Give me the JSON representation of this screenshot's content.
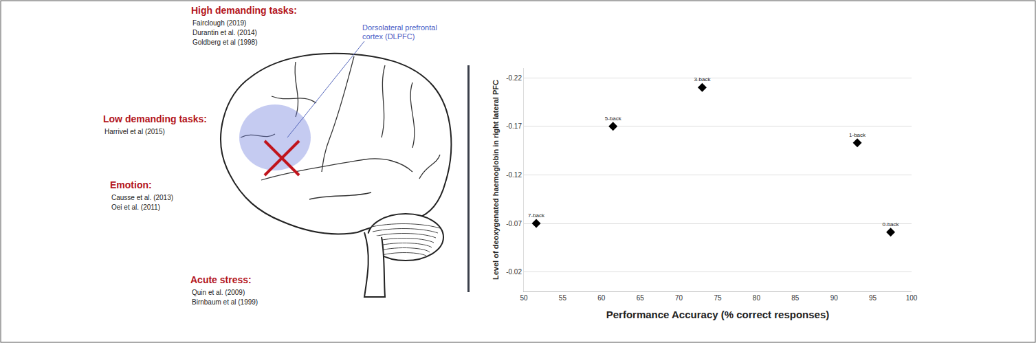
{
  "chart_data": {
    "type": "scatter",
    "x": [
      51.6,
      61.5,
      73.0,
      93.0,
      97.3
    ],
    "values": [
      -0.07,
      -0.17,
      -0.21,
      -0.153,
      -0.061
    ],
    "labels": [
      "7-back",
      "5-back",
      "3-back",
      "1-back",
      "0-back"
    ],
    "xlabel": "Performance Accuracy (% correct responses)",
    "ylabel": "Level of deoxygenated haemoglobin in right lateral PFC",
    "xlim": [
      50,
      100
    ],
    "xticks": [
      50,
      55,
      60,
      65,
      70,
      75,
      80,
      85,
      90,
      95,
      100
    ],
    "ylim": [
      0,
      -0.23
    ],
    "yticks": [
      -0.22,
      -0.17,
      -0.12,
      -0.07,
      -0.02
    ],
    "grid": true,
    "color": "#000000",
    "marker": "diamond"
  },
  "diagram": {
    "region_label": "Dorsolateral prefrontal cortex (DLPFC)",
    "groups": [
      {
        "heading": "High demanding tasks:",
        "refs": [
          "Fairclough (2019)",
          "Durantin et al. (2014)",
          "Goldberg et al  (1998)"
        ]
      },
      {
        "heading": "Low demanding tasks:",
        "refs": [
          "Harrivel et al  (2015)"
        ]
      },
      {
        "heading": "Emotion:",
        "refs": [
          "Causse et al. (2013)",
          "Oei et al. (2011)"
        ]
      },
      {
        "heading": "Acute stress:",
        "refs": [
          "Quin et  al. (2009)",
          "Birnbaum et al (1999)"
        ]
      }
    ]
  }
}
